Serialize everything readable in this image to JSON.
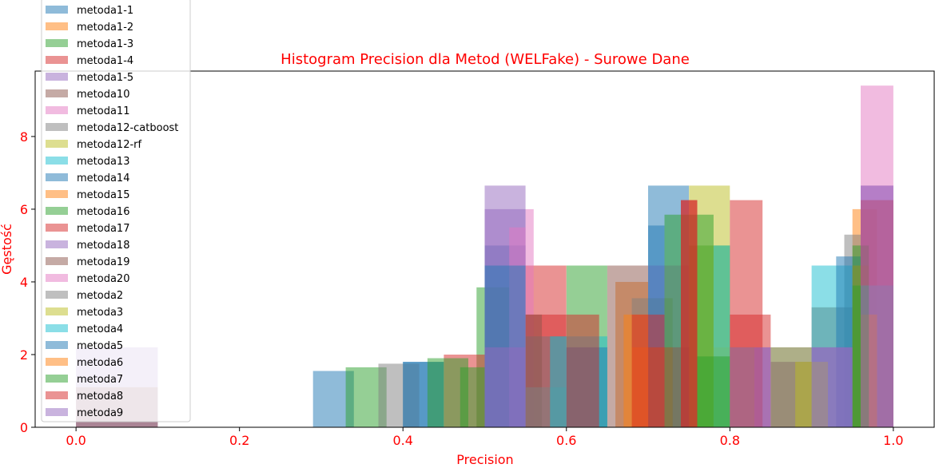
{
  "chart_data": {
    "type": "bar",
    "title": "Histogram Precision dla Metod (WELFake) - Surowe Dane",
    "xlabel": "Precision",
    "ylabel": "Gęstość",
    "xlim": [
      -0.05,
      1.05
    ],
    "ylim": [
      0,
      9.8
    ],
    "xticks": [
      "0.0",
      "0.2",
      "0.4",
      "0.6",
      "0.8",
      "1.0"
    ],
    "yticks": [
      "0",
      "2",
      "4",
      "6",
      "8"
    ],
    "grid": false,
    "legend_position": "top-left",
    "colors": {
      "text_accent": "#ff0000",
      "axis": "#000000"
    },
    "series": [
      {
        "name": "metoda1-1",
        "color": "#1f77b4",
        "bins": [
          [
            0.29,
            0.34,
            1.55
          ],
          [
            0.4,
            0.45,
            1.8
          ],
          [
            0.5,
            0.55,
            5.0
          ],
          [
            0.7,
            0.75,
            6.65
          ]
        ]
      },
      {
        "name": "metoda1-2",
        "color": "#ff7f0e",
        "bins": [
          [
            0.66,
            0.7,
            4.0
          ],
          [
            0.95,
            0.98,
            6.0
          ]
        ]
      },
      {
        "name": "metoda1-3",
        "color": "#2ca02c",
        "bins": [
          [
            0.33,
            0.38,
            1.65
          ],
          [
            0.49,
            0.53,
            3.85
          ],
          [
            0.6,
            0.65,
            4.45
          ],
          [
            0.75,
            0.8,
            5.0
          ]
        ]
      },
      {
        "name": "metoda1-4",
        "color": "#d62728",
        "bins": [
          [
            0.45,
            0.5,
            2.0
          ],
          [
            0.55,
            0.6,
            4.45
          ],
          [
            0.8,
            0.85,
            3.1
          ]
        ]
      },
      {
        "name": "metoda1-5",
        "color": "#9467bd",
        "bins": [
          [
            0.0,
            0.1,
            2.2
          ],
          [
            0.5,
            0.55,
            6.65
          ],
          [
            0.7,
            0.75,
            4.45
          ],
          [
            0.96,
            1.0,
            6.65
          ]
        ]
      },
      {
        "name": "metoda10",
        "color": "#8c564b",
        "bins": [
          [
            0.0,
            0.1,
            1.1
          ],
          [
            0.65,
            0.7,
            4.45
          ],
          [
            0.9,
            0.95,
            3.3
          ]
        ]
      },
      {
        "name": "metoda11",
        "color": "#e377c2",
        "bins": [
          [
            0.55,
            0.56,
            6.0
          ],
          [
            0.96,
            1.0,
            9.4
          ]
        ]
      },
      {
        "name": "metoda12-catboost",
        "color": "#7f7f7f",
        "bins": [
          [
            0.37,
            0.42,
            1.75
          ],
          [
            0.68,
            0.73,
            3.55
          ],
          [
            0.94,
            0.96,
            5.3
          ]
        ]
      },
      {
        "name": "metoda12-rf",
        "color": "#bcbd22",
        "bins": [
          [
            0.75,
            0.8,
            6.65
          ],
          [
            0.85,
            0.9,
            2.2
          ]
        ]
      },
      {
        "name": "metoda13",
        "color": "#17becf",
        "bins": [
          [
            0.55,
            0.6,
            2.5
          ],
          [
            0.9,
            0.95,
            4.45
          ]
        ]
      },
      {
        "name": "metoda14",
        "color": "#1f77b4",
        "bins": [
          [
            0.4,
            0.45,
            1.8
          ],
          [
            0.7,
            0.72,
            5.55
          ],
          [
            0.93,
            0.96,
            4.7
          ]
        ]
      },
      {
        "name": "metoda15",
        "color": "#ff7f0e",
        "bins": [
          [
            0.68,
            0.73,
            2.2
          ],
          [
            0.95,
            0.97,
            4.45
          ]
        ]
      },
      {
        "name": "metoda16",
        "color": "#2ca02c",
        "bins": [
          [
            0.43,
            0.48,
            1.9
          ],
          [
            0.72,
            0.78,
            5.85
          ],
          [
            0.95,
            0.97,
            5.0
          ]
        ]
      },
      {
        "name": "metoda17",
        "color": "#d62728",
        "bins": [
          [
            0.55,
            0.6,
            3.1
          ],
          [
            0.74,
            0.76,
            6.25
          ],
          [
            0.96,
            1.0,
            6.25
          ]
        ]
      },
      {
        "name": "metoda18",
        "color": "#9467bd",
        "bins": [
          [
            0.5,
            0.55,
            6.0
          ],
          [
            0.8,
            0.85,
            2.2
          ],
          [
            0.9,
            0.95,
            2.2
          ]
        ]
      },
      {
        "name": "metoda19",
        "color": "#8c564b",
        "bins": [
          [
            0.55,
            0.57,
            3.1
          ],
          [
            0.7,
            0.75,
            2.2
          ],
          [
            0.85,
            0.9,
            1.8
          ]
        ]
      },
      {
        "name": "metoda20",
        "color": "#e377c2",
        "bins": [
          [
            0.53,
            0.55,
            5.5
          ],
          [
            0.96,
            1.0,
            3.9
          ]
        ]
      },
      {
        "name": "metoda2",
        "color": "#7f7f7f",
        "bins": [
          [
            0.55,
            0.6,
            1.1
          ],
          [
            0.85,
            0.9,
            2.2
          ],
          [
            0.96,
            1.0,
            3.9
          ]
        ]
      },
      {
        "name": "metoda3",
        "color": "#bcbd22",
        "bins": [
          [
            0.78,
            0.83,
            2.2
          ],
          [
            0.88,
            0.92,
            1.8
          ]
        ]
      },
      {
        "name": "metoda4",
        "color": "#17becf",
        "bins": [
          [
            0.58,
            0.65,
            2.5
          ],
          [
            0.78,
            0.8,
            5.0
          ]
        ]
      },
      {
        "name": "metoda5",
        "color": "#1f77b4",
        "bins": [
          [
            0.5,
            0.55,
            4.45
          ],
          [
            0.6,
            0.65,
            2.2
          ]
        ]
      },
      {
        "name": "metoda6",
        "color": "#ff7f0e",
        "bins": [
          [
            0.67,
            0.7,
            3.1
          ],
          [
            0.96,
            0.98,
            3.1
          ]
        ]
      },
      {
        "name": "metoda7",
        "color": "#2ca02c",
        "bins": [
          [
            0.47,
            0.5,
            1.65
          ],
          [
            0.76,
            0.8,
            1.95
          ],
          [
            0.95,
            0.97,
            3.9
          ]
        ]
      },
      {
        "name": "metoda8",
        "color": "#d62728",
        "bins": [
          [
            0.6,
            0.64,
            3.1
          ],
          [
            0.68,
            0.72,
            3.1
          ],
          [
            0.74,
            0.76,
            6.25
          ],
          [
            0.8,
            0.84,
            6.25
          ]
        ]
      },
      {
        "name": "metoda9",
        "color": "#9467bd",
        "bins": [
          [
            0.5,
            0.55,
            2.2
          ],
          [
            0.8,
            0.85,
            2.2
          ],
          [
            0.9,
            0.95,
            2.2
          ],
          [
            0.96,
            1.0,
            6.65
          ]
        ]
      }
    ]
  }
}
